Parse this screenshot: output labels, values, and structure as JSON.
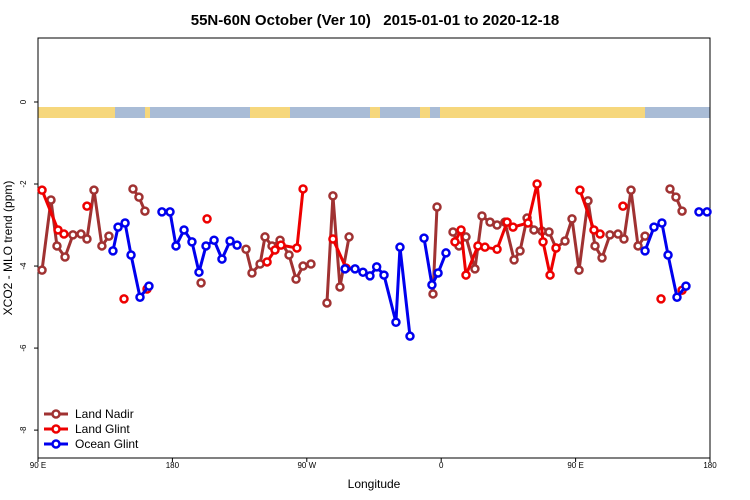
{
  "chart_data": {
    "type": "line",
    "title": "55N-60N October (Ver 10)   2015-01-01 to 2020-12-18",
    "x_label": "Longitude",
    "y_label": "XCO2 - MLO trend (ppm)",
    "xlim": [
      90,
      540
    ],
    "ylim": [
      -8.68,
      1.56
    ],
    "xticks": [
      {
        "value": 90,
        "label": "90 E"
      },
      {
        "value": 180,
        "label": "180"
      },
      {
        "value": 270,
        "label": "90 W"
      },
      {
        "value": 360,
        "label": "0"
      },
      {
        "value": 450,
        "label": "90 E"
      },
      {
        "value": 540,
        "label": "180"
      }
    ],
    "yticks": [
      0,
      -2,
      -4,
      -6,
      -8
    ],
    "legend": "lower left",
    "series": [
      {
        "name": "Land Nadir",
        "color": "#a03232",
        "x": [
          92.7,
          98.7,
          102.7,
          108.1,
          113.4,
          118.8,
          122.8,
          127.5,
          132.8,
          137.5,
          null,
          153.6,
          157.6,
          161.6,
          null,
          199.2,
          null,
          229.3,
          233.3,
          238.7,
          242.0,
          246.7,
          252.1,
          258.1,
          262.8,
          267.5,
          272.8,
          null,
          283.5,
          287.5,
          292.2,
          298.3,
          null,
          354.5,
          357.2,
          null,
          367.9,
          371.9,
          376.6,
          382.6,
          387.3,
          392.7,
          397.4,
          402.7,
          408.8,
          412.8,
          417.5,
          422.1,
          427.5,
          432.2,
          436.9,
          442.9,
          447.6,
          452.3,
          458.3,
          463.0,
          467.7,
          473.0,
          478.4,
          482.4,
          487.1,
          491.8,
          496.5,
          null,
          513.2,
          517.2,
          521.3
        ],
        "values": [
          -4.1,
          -2.39,
          -3.51,
          -3.78,
          -3.24,
          -3.22,
          -3.34,
          -2.15,
          -3.51,
          -3.27,
          null,
          -2.12,
          -2.32,
          -2.66,
          null,
          -4.41,
          null,
          -3.59,
          -4.17,
          -3.95,
          -3.29,
          -3.51,
          -3.37,
          -3.73,
          -4.32,
          -4.0,
          -3.95,
          null,
          -4.9,
          -2.29,
          -4.51,
          -3.29,
          null,
          -4.68,
          -2.56,
          null,
          -3.17,
          -3.51,
          -3.29,
          -4.07,
          -2.78,
          -2.93,
          -3.0,
          -2.93,
          -3.85,
          -3.63,
          -2.83,
          -3.12,
          -3.15,
          -3.17,
          -3.56,
          -3.39,
          -2.85,
          -4.1,
          -2.41,
          -3.51,
          -3.8,
          -3.24,
          -3.22,
          -3.34,
          -2.15,
          -3.51,
          -3.27,
          null,
          -2.12,
          -2.32,
          -2.66
        ]
      },
      {
        "name": "Land Glint",
        "color": "#ee0000",
        "x": [
          92.7,
          103.4,
          107.4,
          null,
          122.8,
          null,
          147.6,
          null,
          163.0,
          null,
          203.2,
          null,
          243.4,
          248.7,
          252.7,
          263.4,
          267.5,
          null,
          287.5,
          296.3,
          null,
          369.2,
          373.3,
          376.6,
          384.6,
          389.3,
          397.4,
          404.1,
          408.1,
          418.1,
          424.2,
          428.2,
          432.9,
          436.9,
          null,
          452.9,
          462.3,
          466.4,
          null,
          481.7,
          null,
          507.2,
          null,
          521.3
        ],
        "values": [
          -2.15,
          -3.12,
          -3.22,
          null,
          -2.54,
          null,
          -4.8,
          null,
          -4.56,
          null,
          -2.85,
          null,
          -3.9,
          -3.61,
          -3.49,
          -3.56,
          -2.12,
          null,
          -3.34,
          -4.05,
          null,
          -3.41,
          -3.12,
          -4.22,
          -3.51,
          -3.54,
          -3.59,
          -2.93,
          -3.05,
          -2.95,
          -2.0,
          -3.41,
          -4.22,
          -3.56,
          null,
          -2.15,
          -3.12,
          -3.22,
          null,
          -2.54,
          null,
          -4.8,
          null,
          -4.59
        ]
      },
      {
        "name": "Ocean Glint",
        "color": "#0000ee",
        "x": [
          140.2,
          143.6,
          148.3,
          152.3,
          158.3,
          164.3,
          null,
          173.0,
          178.4,
          182.4,
          187.8,
          193.1,
          197.8,
          202.5,
          207.9,
          213.2,
          218.6,
          223.3,
          null,
          295.6,
          302.3,
          307.6,
          312.3,
          316.8,
          321.7,
          329.7,
          332.4,
          339.1,
          null,
          348.5,
          353.8,
          357.9,
          363.2,
          null,
          496.5,
          502.5,
          507.8,
          511.9,
          517.9,
          523.9,
          null,
          532.6,
          538.0
        ],
        "values": [
          -3.63,
          -3.05,
          -2.95,
          -3.73,
          -4.76,
          -4.49,
          null,
          -2.68,
          -2.68,
          -3.51,
          -3.12,
          -3.41,
          -4.15,
          -3.51,
          -3.37,
          -3.83,
          -3.39,
          -3.49,
          null,
          -4.07,
          -4.07,
          -4.15,
          -4.24,
          -4.02,
          -4.22,
          -5.37,
          -3.54,
          -5.71,
          null,
          -3.32,
          -4.46,
          -4.17,
          -3.68,
          null,
          -3.63,
          -3.05,
          -2.95,
          -3.73,
          -4.76,
          -4.49,
          null,
          -2.68,
          -2.68
        ]
      }
    ]
  }
}
